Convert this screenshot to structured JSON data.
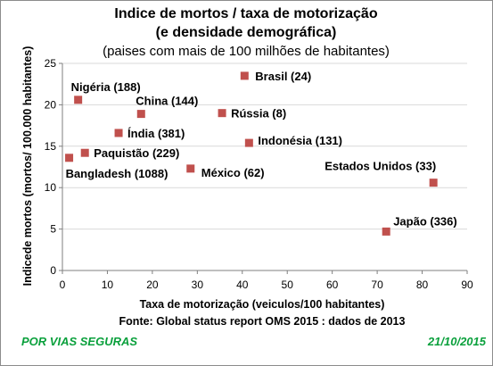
{
  "chart_data": {
    "type": "scatter",
    "title": "Indice de mortos / taxa de motorização",
    "title_line2": "(e densidade demográfica)",
    "subtitle": "(paises com mais de 100 milhões de habitantes)",
    "xlabel": "Taxa de motorização  (veiculos/100 habitantes)",
    "ylabel": "Indicede mortos (mortos/ 100.000 habitantes)",
    "source": "Fonte: Global status report OMS 2015 : dados de 2013",
    "xlim": [
      0,
      90
    ],
    "ylim": [
      0,
      25
    ],
    "xticks": [
      0,
      10,
      20,
      30,
      40,
      50,
      60,
      70,
      80,
      90
    ],
    "yticks": [
      0,
      5,
      10,
      15,
      20,
      25
    ],
    "grid": "horizontal",
    "marker_color": "#c0504d",
    "points": [
      {
        "label": "Brasil (24)",
        "x": 40.5,
        "y": 23.5
      },
      {
        "label": "Nigéria (188)",
        "x": 3.5,
        "y": 20.6
      },
      {
        "label": "China (144)",
        "x": 17.5,
        "y": 18.9
      },
      {
        "label": "Rússia (8)",
        "x": 35.5,
        "y": 19.0
      },
      {
        "label": "Índia (381)",
        "x": 12.5,
        "y": 16.6
      },
      {
        "label": "Indonésia (131)",
        "x": 41.5,
        "y": 15.4
      },
      {
        "label": "Paquistão (229)",
        "x": 5.0,
        "y": 14.2
      },
      {
        "label": "Bangladesh (1088)",
        "x": 1.5,
        "y": 13.6
      },
      {
        "label": "México (62)",
        "x": 28.5,
        "y": 12.3
      },
      {
        "label": "Estados Unidos (33)",
        "x": 82.5,
        "y": 10.6
      },
      {
        "label": "Japão (336)",
        "x": 72.0,
        "y": 4.7
      }
    ]
  },
  "footer": {
    "left": "POR VIAS SEGURAS",
    "right": "21/10/2015"
  }
}
